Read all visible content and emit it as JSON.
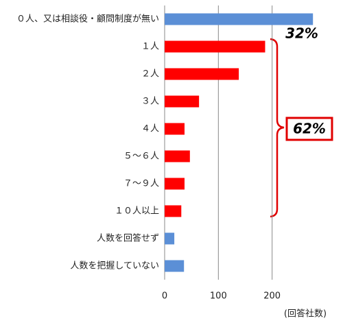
{
  "chart_data": {
    "type": "hbar",
    "categories": [
      "０人、又は相談役・顧問制度が無い",
      "１人",
      "２人",
      "３人",
      "４人",
      "５～６人",
      "７～９人",
      "１０人以上",
      "人数を回答せず",
      "人数を把握していない"
    ],
    "values": [
      276,
      187,
      138,
      64,
      37,
      47,
      37,
      31,
      18,
      36
    ],
    "colors": [
      "#5b8fd6",
      "#ff0000",
      "#ff0000",
      "#ff0000",
      "#ff0000",
      "#ff0000",
      "#ff0000",
      "#ff0000",
      "#5b8fd6",
      "#5b8fd6"
    ],
    "xlim": [
      0,
      300
    ],
    "xticks": [
      0,
      100,
      200
    ],
    "grid": true,
    "x_unit_label": "(回答社数)",
    "annotations": [
      "32%",
      "62%"
    ]
  }
}
